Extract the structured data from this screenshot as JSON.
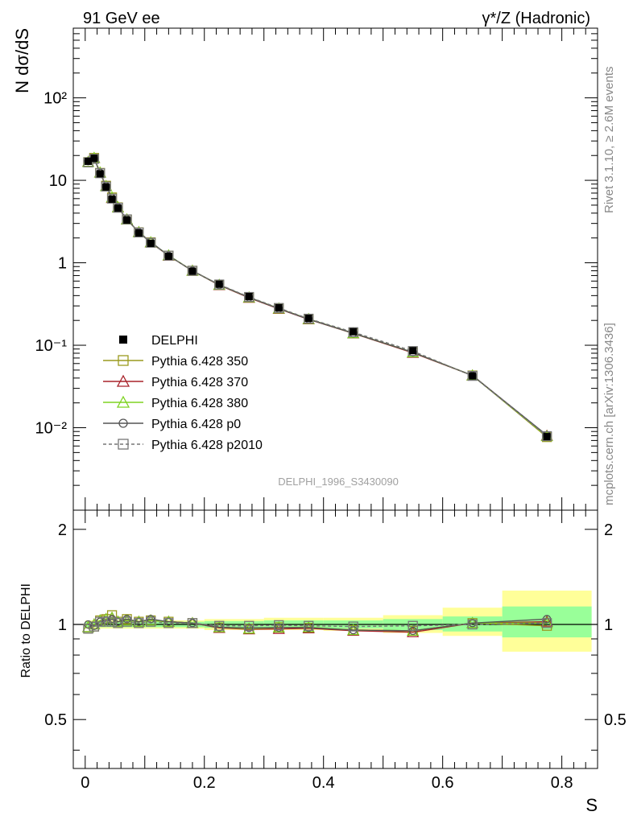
{
  "header": {
    "left_label": "91 GeV ee",
    "right_label": "γ*/Z (Hadronic)"
  },
  "side_labels": {
    "rivet": "Rivet 3.1.10, ≥ 2.6M events",
    "mcplots": "mcplots.cern.ch [arXiv:1306.3436]"
  },
  "analysis_label": "DELPHI_1996_S3430090",
  "chart_data": [
    {
      "type": "scatter",
      "title": "",
      "ylabel": "N dσ/dS",
      "xlabel": "S",
      "xlim": [
        -0.02,
        0.86
      ],
      "ylim": [
        0.001,
        700
      ],
      "yscale": "log",
      "y_tick_labels": [
        "10⁻²",
        "10⁻¹",
        "1",
        "10",
        "10²"
      ],
      "x_tick_labels": [
        "0",
        "0.2",
        "0.4",
        "0.6",
        "0.8"
      ],
      "legend_position": "middle-left",
      "x": [
        0.005,
        0.015,
        0.025,
        0.035,
        0.045,
        0.055,
        0.07,
        0.09,
        0.11,
        0.14,
        0.18,
        0.225,
        0.275,
        0.325,
        0.375,
        0.45,
        0.55,
        0.65,
        0.775
      ],
      "series": [
        {
          "name": "DELPHI",
          "color": "#000000",
          "marker": "filled-square",
          "values": [
            17.0,
            18.5,
            12.0,
            8.3,
            5.9,
            4.6,
            3.3,
            2.3,
            1.72,
            1.2,
            0.79,
            0.55,
            0.39,
            0.285,
            0.212,
            0.146,
            0.086,
            0.0425,
            0.0078
          ]
        },
        {
          "name": "Pythia 6.428 350",
          "color": "#9a9a1e",
          "marker": "open-square",
          "values": [
            16.6,
            18.7,
            12.3,
            8.6,
            6.2,
            4.7,
            3.35,
            2.34,
            1.77,
            1.22,
            0.8,
            0.538,
            0.378,
            0.279,
            0.207,
            0.14,
            0.082,
            0.043,
            0.0077
          ]
        },
        {
          "name": "Pythia 6.428 370",
          "color": "#a8222a",
          "marker": "open-triangle",
          "values": [
            16.7,
            18.6,
            12.4,
            8.5,
            6.1,
            4.7,
            3.34,
            2.35,
            1.76,
            1.22,
            0.8,
            0.536,
            0.376,
            0.276,
            0.206,
            0.139,
            0.081,
            0.043,
            0.008
          ]
        },
        {
          "name": "Pythia 6.428 380",
          "color": "#7ed321",
          "marker": "open-triangle",
          "values": [
            16.7,
            18.7,
            12.4,
            8.5,
            6.2,
            4.7,
            3.35,
            2.35,
            1.77,
            1.23,
            0.8,
            0.54,
            0.38,
            0.279,
            0.208,
            0.14,
            0.082,
            0.043,
            0.0079
          ]
        },
        {
          "name": "Pythia 6.428 p0",
          "color": "#555555",
          "marker": "open-circle",
          "values": [
            17.1,
            18.4,
            12.3,
            8.5,
            6.1,
            4.7,
            3.38,
            2.34,
            1.79,
            1.22,
            0.8,
            0.54,
            0.38,
            0.278,
            0.207,
            0.14,
            0.082,
            0.043,
            0.0081
          ]
        },
        {
          "name": "Pythia 6.428 p2010",
          "color": "#777777",
          "marker": "open-square",
          "dashed": true,
          "values": [
            16.5,
            18.2,
            12.2,
            8.4,
            6.0,
            4.65,
            3.36,
            2.33,
            1.75,
            1.22,
            0.8,
            0.545,
            0.385,
            0.283,
            0.21,
            0.144,
            0.085,
            0.0425,
            0.0079
          ]
        }
      ]
    },
    {
      "type": "scatter",
      "title": "",
      "ylabel": "Ratio to DELPHI",
      "xlabel": "S",
      "xlim": [
        -0.02,
        0.86
      ],
      "ylim": [
        0.35,
        2.3
      ],
      "yscale": "log",
      "y_tick_labels": [
        "0.5",
        "1",
        "2"
      ],
      "x_tick_labels": [
        "0",
        "0.2",
        "0.4",
        "0.6",
        "0.8"
      ],
      "uncertainty_bands": [
        {
          "x_range": [
            0.0,
            0.2
          ],
          "inner": [
            0.98,
            1.02
          ],
          "outer": [
            0.97,
            1.03
          ]
        },
        {
          "x_range": [
            0.2,
            0.3
          ],
          "inner": [
            0.975,
            1.025
          ],
          "outer": [
            0.96,
            1.04
          ]
        },
        {
          "x_range": [
            0.3,
            0.4
          ],
          "inner": [
            0.975,
            1.03
          ],
          "outer": [
            0.96,
            1.05
          ]
        },
        {
          "x_range": [
            0.4,
            0.5
          ],
          "inner": [
            0.97,
            1.03
          ],
          "outer": [
            0.955,
            1.05
          ]
        },
        {
          "x_range": [
            0.5,
            0.6
          ],
          "inner": [
            0.96,
            1.04
          ],
          "outer": [
            0.94,
            1.07
          ]
        },
        {
          "x_range": [
            0.6,
            0.7
          ],
          "inner": [
            0.95,
            1.06
          ],
          "outer": [
            0.92,
            1.13
          ]
        },
        {
          "x_range": [
            0.7,
            0.85
          ],
          "inner": [
            0.91,
            1.14
          ],
          "outer": [
            0.82,
            1.28
          ]
        }
      ],
      "x": [
        0.005,
        0.015,
        0.025,
        0.035,
        0.045,
        0.055,
        0.07,
        0.09,
        0.11,
        0.14,
        0.18,
        0.225,
        0.275,
        0.325,
        0.375,
        0.45,
        0.55,
        0.65,
        0.775
      ],
      "series": [
        {
          "name": "Pythia 6.428 350",
          "color": "#9a9a1e",
          "marker": "open-square",
          "values": [
            0.97,
            0.985,
            1.03,
            1.04,
            1.07,
            1.02,
            1.04,
            1.02,
            1.03,
            1.02,
            1.01,
            0.978,
            0.968,
            0.98,
            0.975,
            0.96,
            0.955,
            1.01,
            0.99
          ]
        },
        {
          "name": "Pythia 6.428 370",
          "color": "#a8222a",
          "marker": "open-triangle",
          "values": [
            0.98,
            1.0,
            1.03,
            1.04,
            1.05,
            1.02,
            1.03,
            1.02,
            1.03,
            1.02,
            1.01,
            0.975,
            0.965,
            0.968,
            0.972,
            0.955,
            0.945,
            1.01,
            1.02
          ]
        },
        {
          "name": "Pythia 6.428 380",
          "color": "#7ed321",
          "marker": "open-triangle",
          "values": [
            0.98,
            1.0,
            1.03,
            1.04,
            1.05,
            1.02,
            1.03,
            1.02,
            1.03,
            1.02,
            1.01,
            0.98,
            0.97,
            0.978,
            0.98,
            0.96,
            0.955,
            1.01,
            1.01
          ]
        },
        {
          "name": "Pythia 6.428 p0",
          "color": "#555555",
          "marker": "open-circle",
          "values": [
            1.0,
            0.99,
            1.02,
            1.03,
            1.04,
            1.02,
            1.04,
            1.02,
            1.04,
            1.02,
            1.01,
            0.98,
            0.975,
            0.978,
            0.977,
            0.96,
            0.955,
            1.01,
            1.04
          ]
        },
        {
          "name": "Pythia 6.428 p2010",
          "color": "#777777",
          "marker": "open-square",
          "dashed": true,
          "values": [
            0.97,
            0.985,
            1.02,
            1.02,
            1.02,
            1.01,
            1.02,
            1.01,
            1.02,
            1.01,
            1.01,
            0.99,
            0.99,
            0.995,
            0.99,
            0.985,
            0.99,
            1.0,
            1.01
          ]
        }
      ]
    }
  ]
}
